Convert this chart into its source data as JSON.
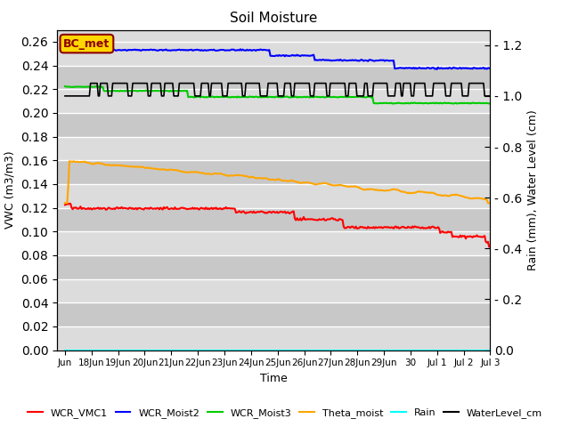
{
  "title": "Soil Moisture",
  "xlabel": "Time",
  "ylabel_left": "VWC (m3/m3)",
  "ylabel_right": "Rain (mm), Water Level (cm)",
  "ylim_left": [
    0.0,
    0.27
  ],
  "ylim_right": [
    0.0,
    1.26
  ],
  "yticks_left": [
    0.0,
    0.02,
    0.04,
    0.06,
    0.08,
    0.1,
    0.12,
    0.14,
    0.16,
    0.18,
    0.2,
    0.22,
    0.24,
    0.26
  ],
  "yticks_right": [
    0.0,
    0.2,
    0.4,
    0.6,
    0.8,
    1.0,
    1.2
  ],
  "annotation_text": "BC_met",
  "annotation_color": "#8B0000",
  "annotation_bg": "#FFD700",
  "bg_color_light": "#DCDCDC",
  "bg_color_dark": "#C8C8C8",
  "grid_color": "#FFFFFF",
  "series": {
    "WCR_VMC1": {
      "color": "#FF0000",
      "lw": 1.5
    },
    "WCR_Moist2": {
      "color": "#0000FF",
      "lw": 1.5
    },
    "WCR_Moist3": {
      "color": "#00CC00",
      "lw": 1.5
    },
    "Theta_moist": {
      "color": "#FFA500",
      "lw": 1.5
    },
    "Rain": {
      "color": "#00FFFF",
      "lw": 1.5
    },
    "WaterLevel_cm": {
      "color": "#000000",
      "lw": 1.2
    }
  },
  "tick_positions": [
    0,
    1,
    2,
    3,
    4,
    5,
    6,
    7,
    8,
    9,
    10,
    11,
    12,
    13,
    14,
    15,
    16
  ],
  "tick_labels": [
    "Jun",
    "18Jun",
    "19Jun",
    "20Jun",
    "21Jun",
    "22Jun",
    "23Jun",
    "24Jun",
    "25Jun",
    "26Jun",
    "27Jun",
    "28Jun",
    "29Jun",
    "30",
    "Jul 1",
    "Jul 2",
    "Jul 3"
  ]
}
